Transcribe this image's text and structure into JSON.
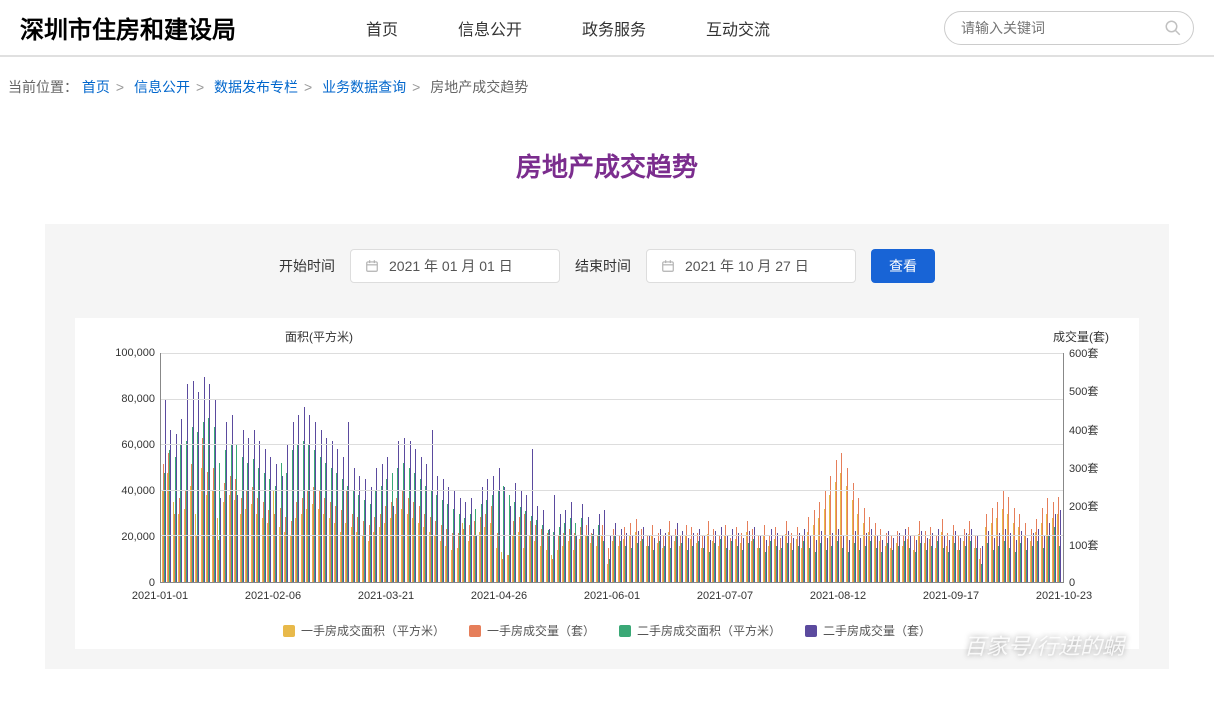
{
  "header": {
    "site_title": "深圳市住房和建设局",
    "nav": [
      "首页",
      "信息公开",
      "政务服务",
      "互动交流"
    ],
    "search_placeholder": "请输入关键词"
  },
  "breadcrumb": {
    "label": "当前位置：",
    "items": [
      "首页",
      "信息公开",
      "数据发布专栏",
      "业务数据查询",
      "房地产成交趋势"
    ]
  },
  "page_title": "房地产成交趋势",
  "controls": {
    "start_label": "开始时间",
    "start_value": "2021 年 01 月 01 日",
    "end_label": "结束时间",
    "end_value": "2021 年 10 月 27 日",
    "view_btn": "查看"
  },
  "chart": {
    "type": "grouped-bar-dual-axis",
    "y_left_title": "面积(平方米)",
    "y_right_title": "成交量(套)",
    "y_left": {
      "min": 0,
      "max": 100000,
      "step": 20000,
      "ticks": [
        "0",
        "20,000",
        "40,000",
        "60,000",
        "80,000",
        "100,000"
      ]
    },
    "y_right": {
      "min": 0,
      "max": 600,
      "step": 100,
      "ticks": [
        "0",
        "100套",
        "200套",
        "300套",
        "400套",
        "500套",
        "600套"
      ]
    },
    "x_labels": [
      "2021-01-01",
      "2021-02-06",
      "2021-03-21",
      "2021-04-26",
      "2021-06-01",
      "2021-07-07",
      "2021-08-12",
      "2021-09-17",
      "2021-10-23"
    ],
    "series": [
      {
        "name": "一手房成交面积（平方米）",
        "color": "#e8b94a",
        "axis": "left"
      },
      {
        "name": "一手房成交量（套）",
        "color": "#e67e5a",
        "axis": "right"
      },
      {
        "name": "二手房成交面积（平方米）",
        "color": "#3aa876",
        "axis": "left"
      },
      {
        "name": "二手房成交量（套）",
        "color": "#5b4a9e",
        "axis": "right"
      }
    ],
    "background_color": "#ffffff",
    "grid_color": "#dddddd",
    "label_fontsize": 11,
    "data": [
      [
        40000,
        310,
        48000,
        480
      ],
      [
        48000,
        340,
        58000,
        400
      ],
      [
        35000,
        180,
        55000,
        390
      ],
      [
        30000,
        220,
        60000,
        430
      ],
      [
        32000,
        240,
        62000,
        520
      ],
      [
        42000,
        310,
        68000,
        530
      ],
      [
        30000,
        120,
        66000,
        500
      ],
      [
        50000,
        380,
        70000,
        540
      ],
      [
        38000,
        290,
        72000,
        520
      ],
      [
        40000,
        300,
        68000,
        480
      ],
      [
        28000,
        110,
        52000,
        220
      ],
      [
        35000,
        260,
        58000,
        420
      ],
      [
        38000,
        280,
        60000,
        440
      ],
      [
        36000,
        270,
        60000,
        230
      ],
      [
        30000,
        220,
        55000,
        400
      ],
      [
        32000,
        240,
        52000,
        380
      ],
      [
        34000,
        250,
        54000,
        400
      ],
      [
        30000,
        220,
        50000,
        370
      ],
      [
        28000,
        210,
        48000,
        350
      ],
      [
        26000,
        190,
        45000,
        330
      ],
      [
        40000,
        180,
        42000,
        310
      ],
      [
        24000,
        195,
        52000,
        280
      ],
      [
        22000,
        170,
        48000,
        360
      ],
      [
        20000,
        160,
        58000,
        420
      ],
      [
        28000,
        210,
        60000,
        440
      ],
      [
        30000,
        220,
        62000,
        460
      ],
      [
        32000,
        240,
        60000,
        440
      ],
      [
        34000,
        250,
        58000,
        420
      ],
      [
        32000,
        240,
        55000,
        400
      ],
      [
        30000,
        220,
        52000,
        380
      ],
      [
        28000,
        210,
        50000,
        370
      ],
      [
        26000,
        200,
        48000,
        350
      ],
      [
        22000,
        190,
        45000,
        330
      ],
      [
        26000,
        240,
        42000,
        420
      ],
      [
        24000,
        180,
        40000,
        300
      ],
      [
        22000,
        170,
        38000,
        280
      ],
      [
        20000,
        160,
        36000,
        270
      ],
      [
        18000,
        150,
        34000,
        250
      ],
      [
        22000,
        170,
        40000,
        300
      ],
      [
        24000,
        180,
        42000,
        310
      ],
      [
        26000,
        200,
        45000,
        330
      ],
      [
        28000,
        210,
        48000,
        200
      ],
      [
        30000,
        220,
        50000,
        370
      ],
      [
        32000,
        240,
        52000,
        380
      ],
      [
        30000,
        220,
        50000,
        370
      ],
      [
        28000,
        210,
        48000,
        350
      ],
      [
        26000,
        200,
        45000,
        330
      ],
      [
        24000,
        180,
        42000,
        310
      ],
      [
        22000,
        170,
        40000,
        400
      ],
      [
        20000,
        160,
        38000,
        280
      ],
      [
        18000,
        150,
        36000,
        270
      ],
      [
        16000,
        140,
        34000,
        250
      ],
      [
        14000,
        130,
        32000,
        240
      ],
      [
        15000,
        130,
        30000,
        220
      ],
      [
        26000,
        140,
        28000,
        210
      ],
      [
        18000,
        150,
        30000,
        220
      ],
      [
        20000,
        160,
        32000,
        120
      ],
      [
        22000,
        170,
        34000,
        250
      ],
      [
        24000,
        180,
        36000,
        270
      ],
      [
        26000,
        200,
        38000,
        280
      ],
      [
        15000,
        130,
        40000,
        300
      ],
      [
        13000,
        60,
        42000,
        250
      ],
      [
        12000,
        70,
        38000,
        200
      ],
      [
        20000,
        160,
        35000,
        260
      ],
      [
        22000,
        170,
        33000,
        240
      ],
      [
        15000,
        180,
        31000,
        230
      ],
      [
        20000,
        160,
        29000,
        350
      ],
      [
        18000,
        150,
        27000,
        200
      ],
      [
        16000,
        140,
        25000,
        190
      ],
      [
        14000,
        130,
        23000,
        140
      ],
      [
        12000,
        60,
        22000,
        230
      ],
      [
        14000,
        120,
        24000,
        180
      ],
      [
        16000,
        130,
        26000,
        190
      ],
      [
        18000,
        140,
        28000,
        210
      ],
      [
        14000,
        130,
        26000,
        120
      ],
      [
        19000,
        145,
        28000,
        205
      ],
      [
        20000,
        150,
        20000,
        170
      ],
      [
        17000,
        130,
        21000,
        140
      ],
      [
        16000,
        125,
        25000,
        180
      ],
      [
        20000,
        150,
        18000,
        190
      ],
      [
        8000,
        90,
        10000,
        120
      ],
      [
        18000,
        140,
        20000,
        155
      ],
      [
        16000,
        125,
        18000,
        140
      ],
      [
        19000,
        145,
        16000,
        130
      ],
      [
        20000,
        155,
        15000,
        120
      ],
      [
        22000,
        165,
        17000,
        135
      ],
      [
        18000,
        140,
        19000,
        145
      ],
      [
        16000,
        125,
        16000,
        125
      ],
      [
        20000,
        150,
        14000,
        115
      ],
      [
        17000,
        130,
        18000,
        140
      ],
      [
        15000,
        120,
        16000,
        130
      ],
      [
        22000,
        160,
        15000,
        120
      ],
      [
        18000,
        140,
        20000,
        155
      ],
      [
        16000,
        125,
        17000,
        135
      ],
      [
        20000,
        150,
        14000,
        115
      ],
      [
        19000,
        145,
        16000,
        130
      ],
      [
        17000,
        130,
        18000,
        140
      ],
      [
        15000,
        120,
        15000,
        120
      ],
      [
        21000,
        160,
        13000,
        110
      ],
      [
        18000,
        140,
        17000,
        135
      ],
      [
        16000,
        125,
        19000,
        145
      ],
      [
        20000,
        150,
        15000,
        120
      ],
      [
        14000,
        115,
        18000,
        140
      ],
      [
        19000,
        145,
        16000,
        130
      ],
      [
        17000,
        130,
        14000,
        115
      ],
      [
        22000,
        160,
        17000,
        135
      ],
      [
        18000,
        140,
        19000,
        145
      ],
      [
        15000,
        120,
        15000,
        120
      ],
      [
        20000,
        150,
        13000,
        110
      ],
      [
        16000,
        125,
        18000,
        140
      ],
      [
        19000,
        145,
        16000,
        130
      ],
      [
        14000,
        115,
        15000,
        120
      ],
      [
        21000,
        160,
        17000,
        135
      ],
      [
        17000,
        130,
        14000,
        115
      ],
      [
        19000,
        145,
        16000,
        130
      ],
      [
        15000,
        120,
        18000,
        140
      ],
      [
        22000,
        170,
        15000,
        120
      ],
      [
        25000,
        190,
        13000,
        110
      ],
      [
        28000,
        210,
        17000,
        135
      ],
      [
        32000,
        240,
        14000,
        115
      ],
      [
        38000,
        280,
        16000,
        130
      ],
      [
        44000,
        320,
        18000,
        140
      ],
      [
        48000,
        340,
        15000,
        120
      ],
      [
        42000,
        300,
        13000,
        110
      ],
      [
        36000,
        260,
        17000,
        135
      ],
      [
        30000,
        220,
        14000,
        115
      ],
      [
        26000,
        195,
        16000,
        130
      ],
      [
        22000,
        170,
        18000,
        140
      ],
      [
        20000,
        155,
        15000,
        120
      ],
      [
        18000,
        140,
        13000,
        110
      ],
      [
        16000,
        130,
        17000,
        135
      ],
      [
        15000,
        125,
        14000,
        115
      ],
      [
        17000,
        135,
        16000,
        130
      ],
      [
        16000,
        125,
        18000,
        140
      ],
      [
        19000,
        145,
        15000,
        120
      ],
      [
        14000,
        120,
        13000,
        110
      ],
      [
        21000,
        160,
        17000,
        135
      ],
      [
        17000,
        135,
        14000,
        115
      ],
      [
        19000,
        145,
        16000,
        130
      ],
      [
        15000,
        125,
        18000,
        140
      ],
      [
        22000,
        165,
        15000,
        120
      ],
      [
        16000,
        130,
        13000,
        110
      ],
      [
        20000,
        150,
        17000,
        135
      ],
      [
        14000,
        120,
        14000,
        115
      ],
      [
        18000,
        140,
        16000,
        130
      ],
      [
        21000,
        160,
        18000,
        140
      ],
      [
        15000,
        125,
        15000,
        120
      ],
      [
        10000,
        90,
        8000,
        95
      ],
      [
        24000,
        180,
        17000,
        135
      ],
      [
        26000,
        195,
        14000,
        115
      ],
      [
        28000,
        210,
        16000,
        130
      ],
      [
        32000,
        240,
        18000,
        140
      ],
      [
        30000,
        225,
        15000,
        130
      ],
      [
        26000,
        195,
        13000,
        110
      ],
      [
        24000,
        180,
        17000,
        135
      ],
      [
        20000,
        155,
        14000,
        115
      ],
      [
        18000,
        140,
        16000,
        130
      ],
      [
        22000,
        165,
        18000,
        140
      ],
      [
        26000,
        195,
        15000,
        120
      ],
      [
        30000,
        220,
        20000,
        155
      ],
      [
        28000,
        210,
        24000,
        180
      ],
      [
        30000,
        225,
        16000,
        190
      ]
    ]
  },
  "watermark": "百家号/行进的蜗"
}
